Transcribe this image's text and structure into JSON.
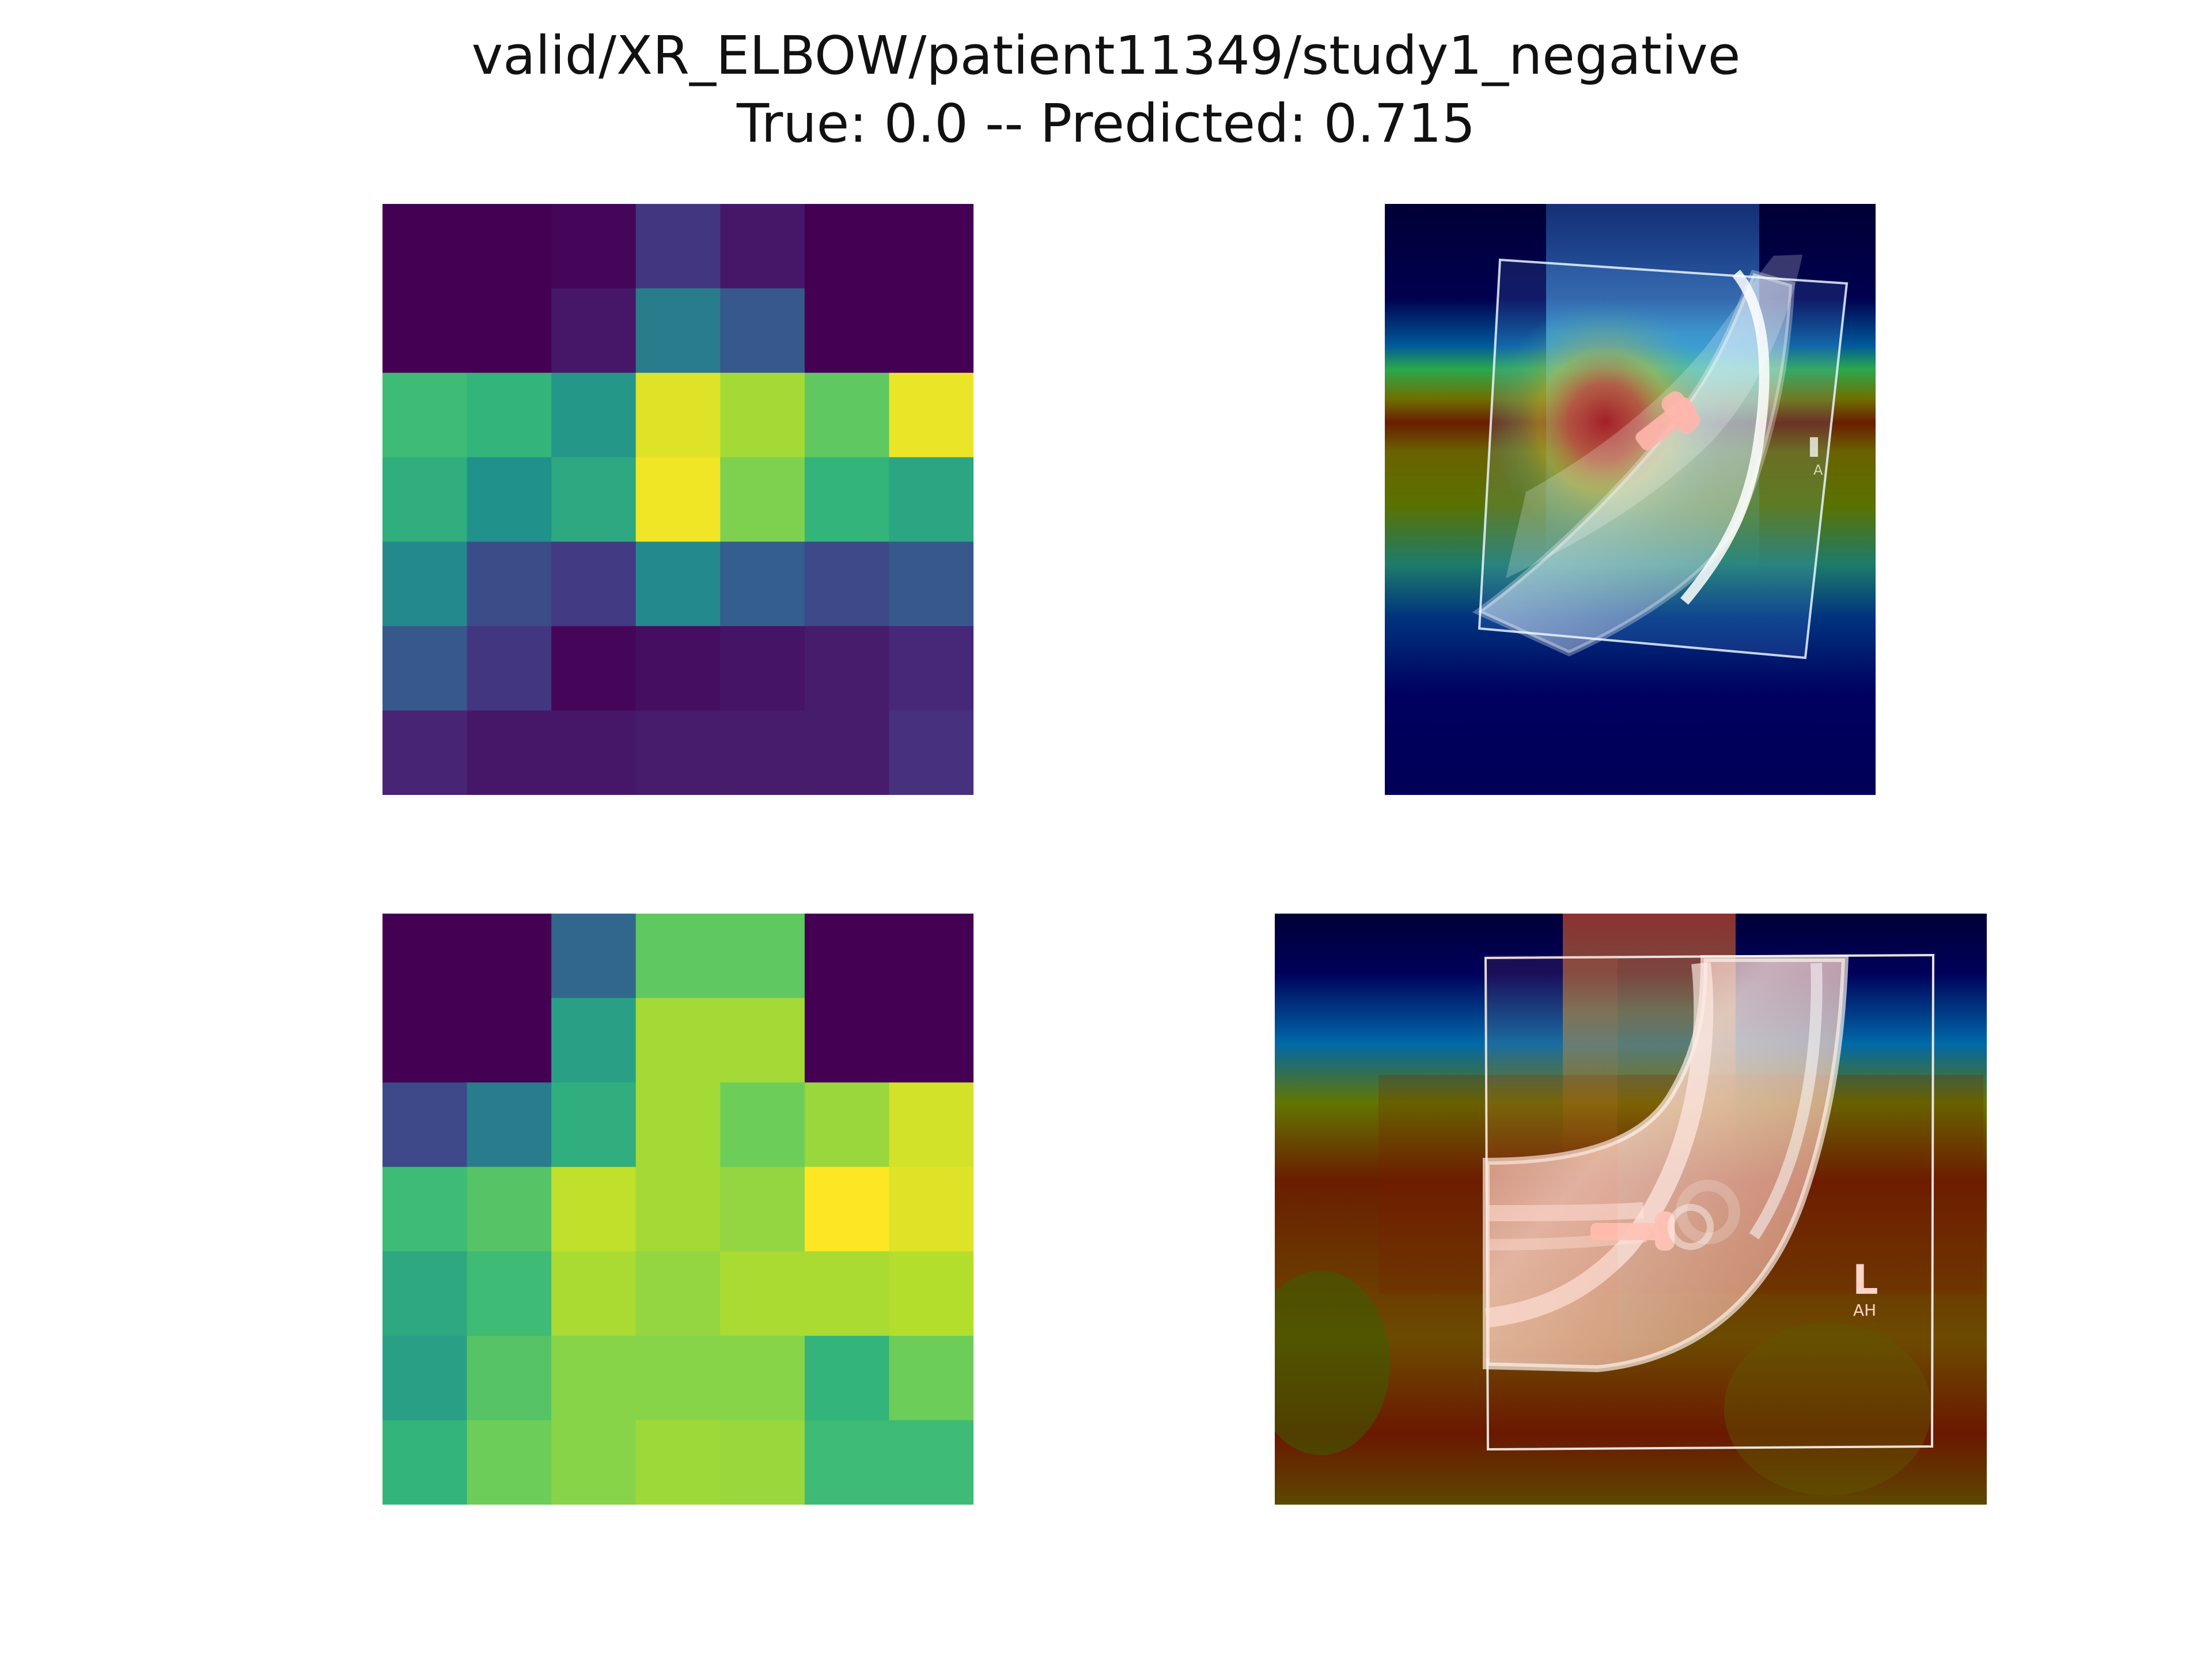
{
  "figure": {
    "title_line_1": "valid/XR_ELBOW/patient11349/study1_negative",
    "title_line_2": "True: 0.0 -- Predicted: 0.715"
  },
  "chart_data": [
    {
      "type": "heatmap",
      "colormap": "viridis",
      "vmin": 0,
      "vmax": 1,
      "values": [
        [
          0.0,
          0.0,
          0.02,
          0.2,
          0.08,
          0.0,
          0.0
        ],
        [
          0.0,
          0.0,
          0.08,
          0.45,
          0.35,
          0.0,
          0.0
        ],
        [
          0.65,
          0.62,
          0.52,
          0.95,
          0.85,
          0.72,
          0.97
        ],
        [
          0.6,
          0.5,
          0.58,
          0.98,
          0.78,
          0.62,
          0.57
        ],
        [
          0.48,
          0.3,
          0.22,
          0.48,
          0.38,
          0.28,
          0.35
        ],
        [
          0.35,
          0.2,
          0.02,
          0.05,
          0.07,
          0.1,
          0.14
        ],
        [
          0.13,
          0.08,
          0.08,
          0.1,
          0.1,
          0.1,
          0.18
        ]
      ],
      "grid": false,
      "axes": "off"
    },
    {
      "type": "heatmap_overlay",
      "description_colormap": "jet",
      "frame_label": "A"
    },
    {
      "type": "heatmap",
      "colormap": "viridis",
      "vmin": 0,
      "vmax": 1,
      "values": [
        [
          0.0,
          0.0,
          0.4,
          0.72,
          0.72,
          0.0,
          0.0
        ],
        [
          0.0,
          0.0,
          0.55,
          0.85,
          0.85,
          0.0,
          0.0
        ],
        [
          0.28,
          0.45,
          0.6,
          0.85,
          0.75,
          0.83,
          0.93
        ],
        [
          0.65,
          0.7,
          0.9,
          0.85,
          0.82,
          1.0,
          0.95
        ],
        [
          0.58,
          0.65,
          0.86,
          0.82,
          0.86,
          0.86,
          0.88
        ],
        [
          0.55,
          0.7,
          0.8,
          0.8,
          0.8,
          0.62,
          0.75
        ],
        [
          0.62,
          0.75,
          0.8,
          0.84,
          0.83,
          0.65,
          0.65
        ]
      ],
      "grid": false,
      "axes": "off"
    },
    {
      "type": "heatmap_overlay",
      "description_colormap": "jet",
      "frame_label": "L",
      "frame_sublabel": "AH"
    }
  ],
  "icons": {
    "top_overlay": "xray-elbow-heatmap-overlay-image",
    "bottom_overlay": "xray-elbow-heatmap-overlay-image"
  },
  "colors": {
    "background": "#ffffff",
    "title": "#111111",
    "overlay_cold": "#00007f",
    "overlay_hot": "#7f0000"
  }
}
